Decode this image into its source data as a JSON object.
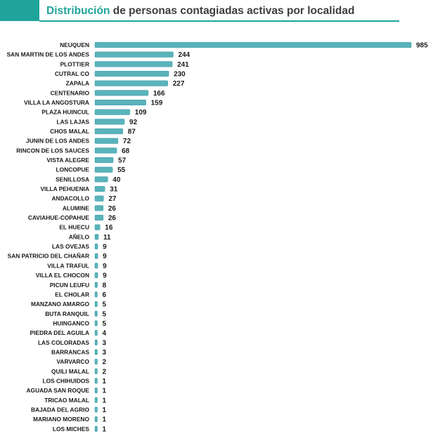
{
  "header": {
    "title_highlight": "Distribución",
    "title_rest": " de personas contagiadas activas por localidad"
  },
  "colors": {
    "accent": "#1fa39a",
    "bar": "#5ab3bb",
    "bar_edge": "#3f9aa3"
  },
  "chart_data": {
    "type": "bar",
    "orientation": "horizontal",
    "title": "Distribución de personas contagiadas activas por localidad",
    "categories": [
      "NEUQUEN",
      "SAN MARTIN DE LOS ANDES",
      "PLOTTIER",
      "CUTRAL CO",
      "ZAPALA",
      "CENTENARIO",
      "VILLA LA ANGOSTURA",
      "PLAZA HUINCUL",
      "LAS LAJAS",
      "CHOS MALAL",
      "JUNIN DE LOS ANDES",
      "RINCON DE LOS SAUCES",
      "VISTA ALEGRE",
      "LONCOPUE",
      "SENILLOSA",
      "VILLA PEHUENIA",
      "ANDACOLLO",
      "ALUMINE",
      "CAVIAHUE-COPAHUE",
      "EL HUECU",
      "AÑELO",
      "LAS OVEJAS",
      "SAN PATRICIO DEL CHAÑAR",
      "VILLA TRAFUL",
      "VILLA EL CHOCON",
      "PICUN LEUFU",
      "EL CHOLAR",
      "MANZANO AMARGO",
      "BUTA RANQUIL",
      "HUINGANCO",
      "PIEDRA DEL AGUILA",
      "LAS COLORADAS",
      "BARRANCAS",
      "VARVARCO",
      "QUILI MALAL",
      "LOS CHIHUIDOS",
      "AGUADA SAN ROQUE",
      "TRICAO MALAL",
      "BAJADA DEL AGRIO",
      "MARIANO MORENO",
      "LOS MICHES"
    ],
    "values": [
      985,
      244,
      241,
      230,
      227,
      166,
      159,
      109,
      92,
      87,
      72,
      68,
      57,
      55,
      40,
      31,
      27,
      26,
      26,
      16,
      11,
      9,
      9,
      9,
      9,
      8,
      6,
      5,
      5,
      5,
      4,
      3,
      3,
      2,
      2,
      1,
      1,
      1,
      1,
      1,
      1
    ],
    "xlim": [
      0,
      985
    ],
    "data_labels": true,
    "grid": false,
    "legend": "none"
  }
}
